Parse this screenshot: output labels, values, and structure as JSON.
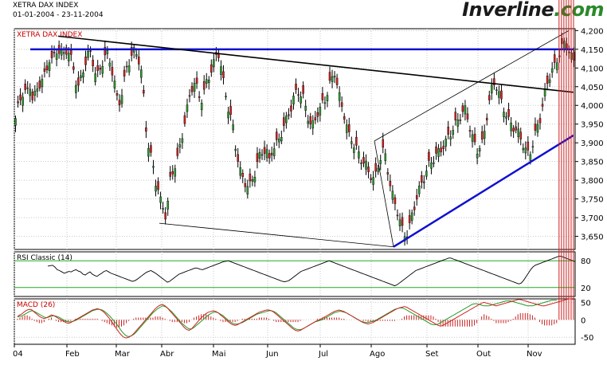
{
  "header": {
    "title": "XETRA DAX INDEX",
    "date_range": "01-01-2004 - 23-11-2004",
    "brand_main": "Inverline",
    "brand_suffix": ".com"
  },
  "colors": {
    "up_candle": "#2e9b2e",
    "down_candle": "#d42020",
    "resistance_line": "#1010d0",
    "trend_line": "#000000",
    "rsi_line": "#000000",
    "rsi_levels": "#22aa22",
    "macd_line": "#cc2222",
    "macd_signal": "#229922",
    "macd_hist": "#cc2222",
    "grid": "#c8c8c8"
  },
  "chart_data": [
    {
      "type": "candlestick",
      "panel": "price",
      "title": "XETRA DAX INDEX",
      "ylim": [
        3615,
        4205
      ],
      "y_ticks": [
        "3,650",
        "3,700",
        "3,750",
        "3,800",
        "3,850",
        "3,900",
        "3,950",
        "4,000",
        "4,050",
        "4,100",
        "4,150",
        "4,200"
      ],
      "x_ticks": [
        "04",
        "Feb",
        "Mar",
        "Abr",
        "Mai",
        "Jun",
        "Jul",
        "Ago",
        "Set",
        "Out",
        "Nov"
      ],
      "grid": true,
      "series": [
        {
          "type": "candlestick",
          "close": [
            3965,
            4000,
            4025,
            4040,
            4030,
            4055,
            4020,
            4030,
            4045,
            4070,
            4075,
            4095,
            4130,
            4120,
            4140,
            4150,
            4140,
            4135,
            4150,
            4140,
            4110,
            4070,
            4050,
            4070,
            4100,
            4130,
            4145,
            4120,
            4090,
            4080,
            4100,
            4130,
            4140,
            4120,
            4090,
            4050,
            4000,
            4020,
            4060,
            4100,
            4120,
            4140,
            4145,
            4130,
            4100,
            4020,
            3920,
            3880,
            3850,
            3800,
            3780,
            3740,
            3720,
            3700,
            3790,
            3820,
            3840,
            3860,
            3900,
            3940,
            3980,
            4020,
            4050,
            4060,
            4040,
            4010,
            4030,
            4060,
            4080,
            4100,
            4120,
            4150,
            4110,
            4060,
            4020,
            3980,
            3960,
            3900,
            3860,
            3820,
            3800,
            3790,
            3780,
            3800,
            3820,
            3850,
            3870,
            3880,
            3880,
            3850,
            3880,
            3890,
            3900,
            3920,
            3940,
            3960,
            3980,
            4000,
            4030,
            4040,
            4030,
            4020,
            3990,
            3960,
            3940,
            3960,
            3980,
            3990,
            4010,
            4020,
            4050,
            4070,
            4090,
            4050,
            4010,
            3990,
            3950,
            3920,
            3910,
            3890,
            3880,
            3860,
            3850,
            3840,
            3820,
            3810,
            3800,
            3830,
            3860,
            3880,
            3860,
            3810,
            3770,
            3740,
            3720,
            3690,
            3660,
            3650,
            3670,
            3700,
            3730,
            3760,
            3780,
            3800,
            3820,
            3840,
            3850,
            3860,
            3870,
            3880,
            3890,
            3900,
            3920,
            3930,
            3940,
            3960,
            3970,
            3980,
            3990,
            3960,
            3920,
            3900,
            3880,
            3890,
            3900,
            3950,
            4000,
            4040,
            4060,
            4050,
            4020,
            4000,
            3980,
            3960,
            3950,
            3940,
            3930,
            3920,
            3900,
            3880,
            3870,
            3880,
            3910,
            3940,
            3960,
            4000,
            4040,
            4070,
            4090,
            4100,
            4120,
            4140,
            4160,
            4170,
            4150,
            4130,
            4120
          ],
          "approx_points": 232
        },
        {
          "name": "",
          "type": "line",
          "role": "horizontal resistance",
          "y": 4150
        },
        {
          "name": "",
          "type": "line",
          "role": "descending trend line",
          "from": [
            "Jan",
            4185
          ],
          "to": [
            "Nov 23",
            4035
          ]
        },
        {
          "name": "",
          "type": "line",
          "role": "rising support",
          "from": [
            "Ago",
            3622
          ],
          "to": [
            "Nov 23",
            3920
          ]
        },
        {
          "name": "",
          "type": "line",
          "role": "upper channel",
          "from": [
            "Jul 30",
            3905
          ],
          "to": [
            "Nov 22",
            4200
          ]
        }
      ],
      "annotations": []
    },
    {
      "type": "line",
      "panel": "rsi",
      "title": "RSI Classic (14)",
      "ylim": [
        0,
        100
      ],
      "y_ticks": [
        "80",
        "20"
      ],
      "reference_levels": [
        80,
        20
      ],
      "series": [
        {
          "name": "RSI Classic (14)",
          "values": [
            68,
            69,
            70,
            66,
            60,
            58,
            55,
            52,
            54,
            56,
            55,
            58,
            60,
            57,
            55,
            50,
            48,
            52,
            55,
            50,
            47,
            45,
            49,
            52,
            56,
            58,
            55,
            52,
            50,
            48,
            46,
            44,
            42,
            40,
            38,
            36,
            34,
            35,
            38,
            42,
            46,
            50,
            54,
            56,
            58,
            55,
            52,
            48,
            44,
            40,
            36,
            32,
            34,
            38,
            42,
            46,
            50,
            52,
            54,
            56,
            58,
            60,
            62,
            64,
            63,
            61,
            60,
            62,
            64,
            66,
            68,
            70,
            72,
            74,
            76,
            78,
            79,
            80,
            78,
            76,
            74,
            72,
            70,
            68,
            66,
            64,
            62,
            60,
            58,
            56,
            54,
            52,
            50,
            48,
            46,
            44,
            42,
            40,
            38,
            36,
            34,
            33,
            34,
            36,
            40,
            44,
            48,
            52,
            56,
            58,
            60,
            62,
            64,
            66,
            68,
            70,
            72,
            74,
            76,
            78,
            80,
            78,
            76,
            74,
            72,
            70,
            68,
            66,
            64,
            62,
            60,
            58,
            56,
            54,
            52,
            50,
            48,
            46,
            44,
            42,
            40,
            38,
            36,
            34,
            32,
            30,
            28,
            26,
            24,
            26,
            30,
            34,
            38,
            42,
            46,
            50,
            54,
            58,
            60,
            62,
            64,
            66,
            68,
            70,
            72,
            74,
            76,
            78,
            80,
            82,
            84,
            86,
            86,
            84,
            82,
            80,
            78,
            76,
            74,
            72,
            70,
            68,
            66,
            64,
            62,
            60,
            58,
            56,
            54,
            52,
            50,
            48,
            46,
            44,
            42,
            40,
            38,
            36,
            34,
            32,
            30,
            28,
            30,
            36,
            44,
            52,
            60,
            66,
            70,
            72,
            74,
            76,
            78,
            80,
            82,
            84,
            86,
            88,
            90,
            90,
            88,
            86,
            84,
            82,
            80,
            78
          ]
        }
      ]
    },
    {
      "type": "line",
      "panel": "macd",
      "title": "MACD (26)",
      "ylim": [
        -70,
        60
      ],
      "y_ticks": [
        "50",
        "0",
        "-50"
      ],
      "series": [
        {
          "name": "MACD",
          "values": [
            10,
            14,
            18,
            24,
            28,
            30,
            28,
            22,
            16,
            10,
            6,
            4,
            6,
            10,
            14,
            12,
            8,
            4,
            0,
            -4,
            -8,
            -10,
            -8,
            -4,
            0,
            4,
            8,
            12,
            16,
            20,
            24,
            28,
            30,
            32,
            30,
            26,
            20,
            12,
            4,
            -6,
            -16,
            -26,
            -36,
            -44,
            -50,
            -52,
            -50,
            -46,
            -40,
            -32,
            -24,
            -16,
            -8,
            0,
            8,
            16,
            24,
            32,
            38,
            42,
            44,
            40,
            34,
            26,
            18,
            10,
            2,
            -6,
            -14,
            -22,
            -28,
            -30,
            -26,
            -18,
            -10,
            -2,
            6,
            12,
            18,
            22,
            24,
            26,
            24,
            20,
            14,
            8,
            2,
            -4,
            -10,
            -14,
            -16,
            -14,
            -10,
            -6,
            -2,
            2,
            6,
            10,
            14,
            18,
            22,
            24,
            26,
            28,
            28,
            26,
            22,
            16,
            10,
            4,
            -2,
            -8,
            -14,
            -20,
            -26,
            -30,
            -32,
            -30,
            -26,
            -22,
            -18,
            -14,
            -10,
            -6,
            -2,
            0,
            4,
            8,
            12,
            16,
            20,
            24,
            26,
            28,
            26,
            24,
            20,
            16,
            12,
            8,
            4,
            0,
            -4,
            -8,
            -10,
            -12,
            -10,
            -8,
            -4,
            0,
            4,
            8,
            12,
            16,
            20,
            24,
            28,
            32,
            34,
            36,
            38,
            36,
            32,
            28,
            24,
            20,
            16,
            12,
            8,
            4,
            0,
            -4,
            -8,
            -12,
            -16,
            -18,
            -16,
            -12,
            -8,
            -4,
            0,
            4,
            8,
            12,
            16,
            20,
            24,
            28,
            32,
            36,
            40,
            44,
            48,
            50,
            48,
            46,
            44,
            42,
            40,
            42,
            44,
            46,
            48,
            50,
            52,
            54,
            56,
            58,
            58,
            56,
            54,
            52,
            50,
            48,
            46,
            44,
            42,
            40,
            40,
            42,
            44,
            46,
            48,
            50,
            52,
            54,
            56,
            58,
            60,
            60,
            58
          ]
        },
        {
          "name": "Signal",
          "values": [
            8,
            10,
            12,
            16,
            20,
            24,
            26,
            24,
            20,
            16,
            12,
            8,
            6,
            8,
            10,
            12,
            10,
            8,
            4,
            0,
            -4,
            -6,
            -6,
            -4,
            -2,
            2,
            6,
            10,
            14,
            18,
            22,
            26,
            28,
            30,
            30,
            28,
            24,
            18,
            12,
            4,
            -4,
            -12,
            -22,
            -32,
            -40,
            -46,
            -48,
            -46,
            -42,
            -36,
            -28,
            -20,
            -12,
            -4,
            4,
            12,
            20,
            26,
            32,
            36,
            40,
            38,
            34,
            28,
            22,
            14,
            6,
            -2,
            -10,
            -16,
            -22,
            -26,
            -26,
            -22,
            -16,
            -10,
            -4,
            2,
            8,
            14,
            18,
            22,
            22,
            20,
            16,
            12,
            6,
            0,
            -6,
            -10,
            -12,
            -12,
            -10,
            -8,
            -4,
            0,
            4,
            8,
            12,
            16,
            18,
            20,
            22,
            24,
            26,
            26,
            24,
            20,
            14,
            8,
            2,
            -4,
            -10,
            -16,
            -22,
            -26,
            -28,
            -28,
            -26,
            -22,
            -18,
            -14,
            -10,
            -6,
            -4,
            -2,
            0,
            4,
            8,
            12,
            16,
            20,
            22,
            24,
            24,
            22,
            20,
            16,
            12,
            8,
            4,
            0,
            -4,
            -6,
            -8,
            -8,
            -6,
            -4,
            -2,
            2,
            6,
            10,
            14,
            18,
            22,
            26,
            30,
            32,
            34,
            34,
            32,
            28,
            24,
            20,
            16,
            12,
            8,
            4,
            0,
            -4,
            -8,
            -12,
            -14,
            -14,
            -12,
            -8,
            -4,
            0,
            4,
            8,
            12,
            16,
            20,
            24,
            28,
            32,
            36,
            40,
            44,
            46,
            46,
            44,
            42,
            40,
            40,
            40,
            42,
            44,
            46,
            48,
            50,
            52,
            54,
            54,
            54,
            52,
            50,
            48,
            46,
            44,
            42,
            40,
            40,
            40,
            42,
            44,
            46,
            48,
            50,
            52,
            54,
            56,
            56,
            56
          ]
        }
      ]
    }
  ]
}
